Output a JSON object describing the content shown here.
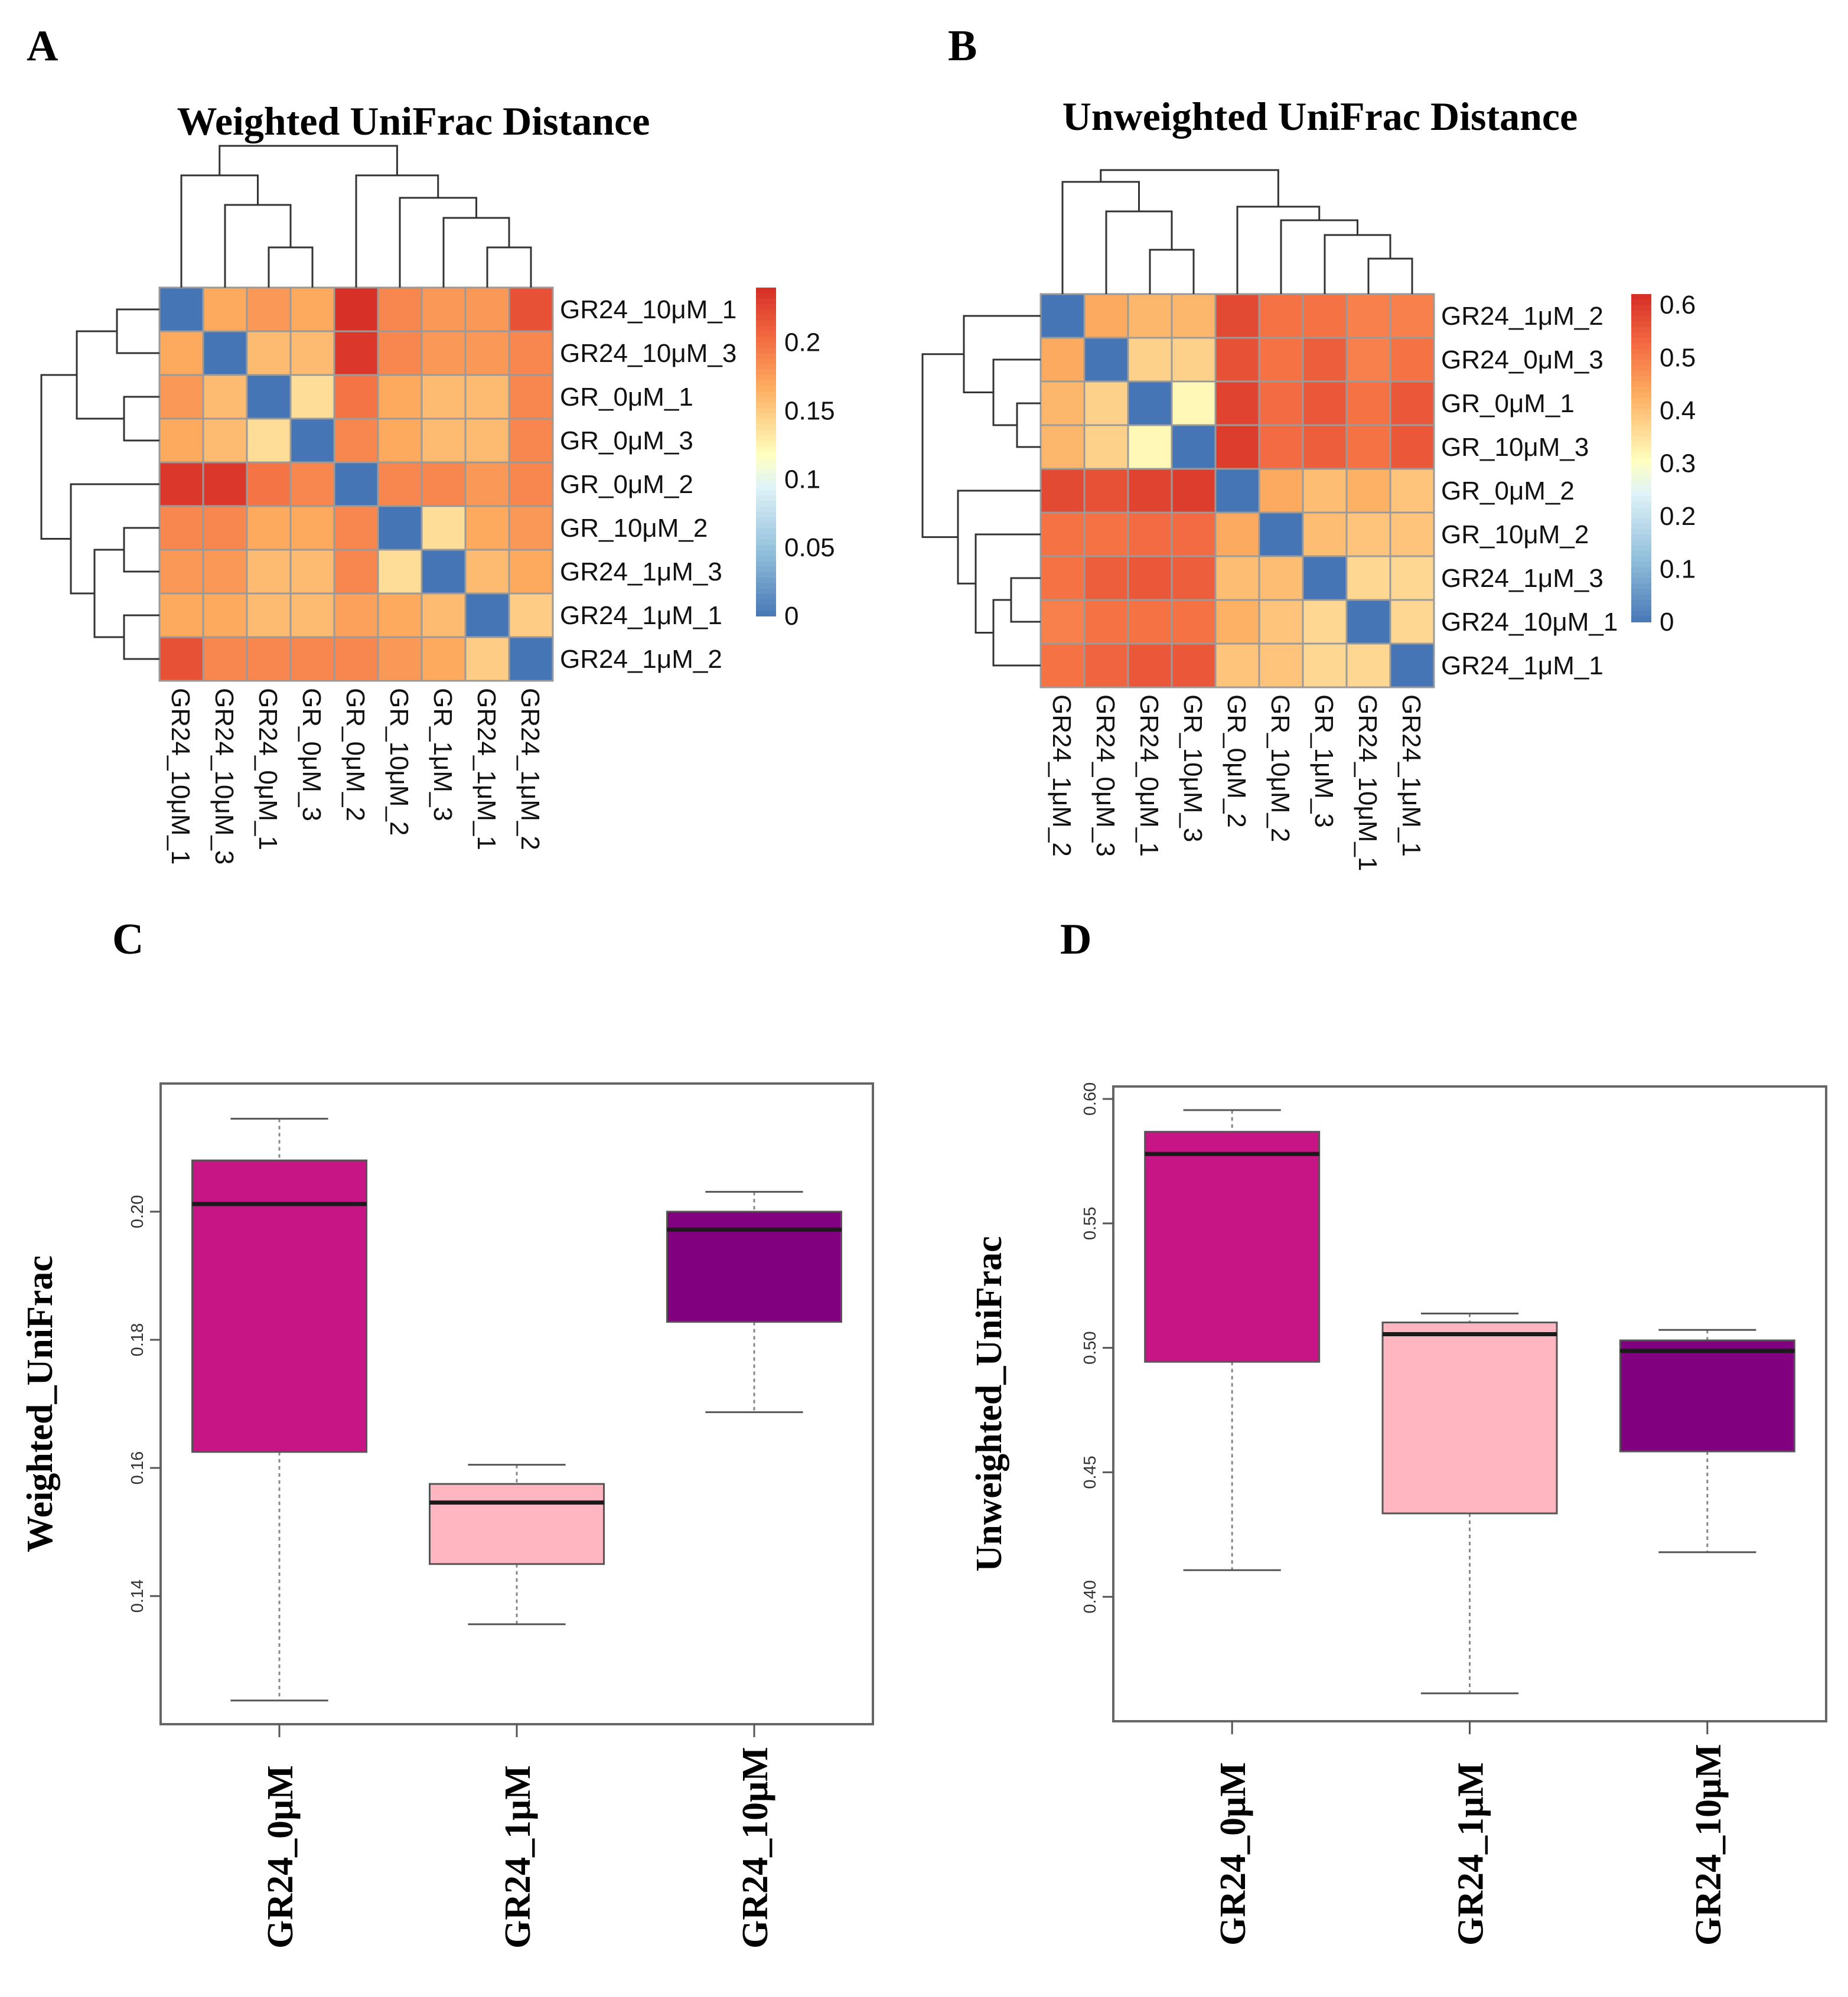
{
  "panels": {
    "A": "A",
    "B": "B",
    "C": "C",
    "D": "D"
  },
  "chart_data": [
    {
      "id": "A",
      "type": "heatmap",
      "title": "Weighted UniFrac Distance",
      "row_labels": [
        "GR24_10μM_1",
        "GR24_10μM_3",
        "GR_0μM_1",
        "GR_0μM_3",
        "GR_0μM_2",
        "GR_10μM_2",
        "GR24_1μM_3",
        "GR24_1μM_1",
        "GR24_1μM_2"
      ],
      "col_labels": [
        "GR24_10μM_1",
        "GR24_10μM_3",
        "GR24_0μM_1",
        "GR_0μM_3",
        "GR_0μM_2",
        "GR_10μM_2",
        "GR_1μM_3",
        "GR24_1μM_1",
        "GR24_1μM_2"
      ],
      "values": [
        [
          0,
          0.17,
          0.18,
          0.17,
          0.24,
          0.19,
          0.18,
          0.18,
          0.22
        ],
        [
          0.17,
          0,
          0.16,
          0.16,
          0.235,
          0.19,
          0.18,
          0.18,
          0.19
        ],
        [
          0.18,
          0.16,
          0,
          0.14,
          0.2,
          0.17,
          0.16,
          0.16,
          0.19
        ],
        [
          0.17,
          0.16,
          0.14,
          0,
          0.19,
          0.17,
          0.16,
          0.16,
          0.19
        ],
        [
          0.235,
          0.235,
          0.2,
          0.19,
          0,
          0.19,
          0.19,
          0.18,
          0.19
        ],
        [
          0.19,
          0.19,
          0.17,
          0.17,
          0.19,
          0,
          0.14,
          0.17,
          0.18
        ],
        [
          0.18,
          0.18,
          0.16,
          0.16,
          0.19,
          0.14,
          0,
          0.16,
          0.17
        ],
        [
          0.17,
          0.17,
          0.16,
          0.16,
          0.175,
          0.17,
          0.16,
          0,
          0.15
        ],
        [
          0.22,
          0.19,
          0.19,
          0.19,
          0.19,
          0.18,
          0.17,
          0.15,
          0
        ]
      ],
      "scale_ticks": [
        "0.2",
        "0.15",
        "0.1",
        "0.05",
        "0"
      ],
      "scale_tick_values": [
        0.2,
        0.15,
        0.1,
        0.05,
        0
      ],
      "scale_range": [
        0,
        0.24
      ]
    },
    {
      "id": "B",
      "type": "heatmap",
      "title": "Unweighted UniFrac Distance",
      "row_labels": [
        "GR24_1μM_2",
        "GR24_0μM_3",
        "GR_0μM_1",
        "GR_10μM_3",
        "GR_0μM_2",
        "GR_10μM_2",
        "GR24_1μM_3",
        "GR24_10μM_1",
        "GR24_1μM_1"
      ],
      "col_labels": [
        "GR24_1μM_2",
        "GR24_0μM_3",
        "GR24_0μM_1",
        "GR_10μM_3",
        "GR_0μM_2",
        "GR_10μM_2",
        "GR_1μM_3",
        "GR24_10μM_1",
        "GR24_1μM_1"
      ],
      "values": [
        [
          0,
          0.44,
          0.42,
          0.42,
          0.58,
          0.52,
          0.52,
          0.5,
          0.5
        ],
        [
          0.44,
          0,
          0.38,
          0.38,
          0.57,
          0.52,
          0.55,
          0.5,
          0.52
        ],
        [
          0.42,
          0.38,
          0,
          0.32,
          0.59,
          0.53,
          0.56,
          0.52,
          0.56
        ],
        [
          0.42,
          0.38,
          0.32,
          0,
          0.6,
          0.53,
          0.55,
          0.52,
          0.56
        ],
        [
          0.58,
          0.57,
          0.59,
          0.6,
          0,
          0.44,
          0.41,
          0.43,
          0.4
        ],
        [
          0.52,
          0.52,
          0.53,
          0.53,
          0.44,
          0,
          0.41,
          0.4,
          0.4
        ],
        [
          0.52,
          0.55,
          0.56,
          0.55,
          0.41,
          0.41,
          0,
          0.37,
          0.37
        ],
        [
          0.5,
          0.52,
          0.52,
          0.52,
          0.43,
          0.4,
          0.37,
          0,
          0.37
        ],
        [
          0.52,
          0.54,
          0.56,
          0.56,
          0.4,
          0.4,
          0.37,
          0.37,
          0
        ]
      ],
      "scale_ticks": [
        "0.6",
        "0.5",
        "0.4",
        "0.3",
        "0.2",
        "0.1",
        "0"
      ],
      "scale_tick_values": [
        0.6,
        0.5,
        0.4,
        0.3,
        0.2,
        0.1,
        0
      ],
      "scale_range": [
        0,
        0.62
      ]
    },
    {
      "id": "C",
      "type": "box",
      "ylabel": "Weighted_UniFrac",
      "ylim": [
        0.12,
        0.22
      ],
      "yticks": [
        0.14,
        0.16,
        0.18,
        0.2
      ],
      "ytick_labels": [
        "0.14",
        "0.16",
        "0.18",
        "0.20"
      ],
      "categories": [
        "GR24_0μM",
        "GR24_1μM",
        "GR24_10μM"
      ],
      "colors": [
        "#C71585",
        "#FFB6C1",
        "#800080"
      ],
      "boxes": [
        {
          "min": 0.1237,
          "q1": 0.1625,
          "median": 0.2012,
          "q3": 0.208,
          "max": 0.2145
        },
        {
          "min": 0.1356,
          "q1": 0.145,
          "median": 0.1546,
          "q3": 0.1575,
          "max": 0.1605
        },
        {
          "min": 0.1687,
          "q1": 0.1828,
          "median": 0.1972,
          "q3": 0.2,
          "max": 0.2031
        }
      ]
    },
    {
      "id": "D",
      "type": "box",
      "ylabel": "Unweighted_UniFrac",
      "ylim": [
        0.35,
        0.605
      ],
      "yticks": [
        0.4,
        0.45,
        0.5,
        0.55,
        0.6
      ],
      "ytick_labels": [
        "0.40",
        "0.45",
        "0.50",
        "0.55",
        "0.60"
      ],
      "categories": [
        "GR24_0μM",
        "GR24_1μM",
        "GR24_10μM"
      ],
      "colors": [
        "#C71585",
        "#FFB6C1",
        "#800080"
      ],
      "boxes": [
        {
          "min": 0.4107,
          "q1": 0.4944,
          "median": 0.5779,
          "q3": 0.5868,
          "max": 0.5955
        },
        {
          "min": 0.3612,
          "q1": 0.4335,
          "median": 0.5055,
          "q3": 0.5102,
          "max": 0.5138
        },
        {
          "min": 0.4179,
          "q1": 0.4584,
          "median": 0.4988,
          "q3": 0.503,
          "max": 0.5072
        }
      ]
    }
  ]
}
